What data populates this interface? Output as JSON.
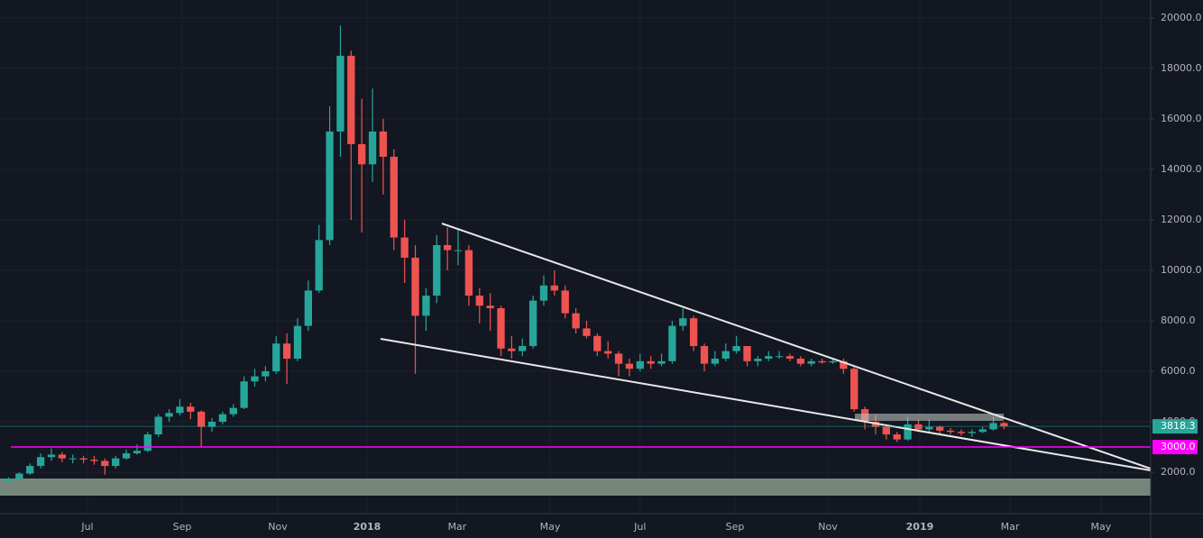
{
  "chart_data": {
    "type": "candlestick",
    "up_color": "#26a69a",
    "down_color": "#ef5350",
    "grid": true,
    "candles": [
      [
        1650,
        1800,
        1600,
        1750
      ],
      [
        1750,
        2000,
        1700,
        1950
      ],
      [
        1950,
        2350,
        1900,
        2250
      ],
      [
        2250,
        2750,
        2150,
        2600
      ],
      [
        2600,
        2950,
        2450,
        2700
      ],
      [
        2700,
        2800,
        2400,
        2550
      ],
      [
        2550,
        2700,
        2350,
        2550
      ],
      [
        2550,
        2650,
        2350,
        2500
      ],
      [
        2500,
        2650,
        2300,
        2450
      ],
      [
        2450,
        2550,
        1900,
        2250
      ],
      [
        2250,
        2650,
        2150,
        2550
      ],
      [
        2550,
        2900,
        2500,
        2750
      ],
      [
        2750,
        3100,
        2700,
        2850
      ],
      [
        2850,
        3600,
        2800,
        3500
      ],
      [
        3500,
        4300,
        3400,
        4200
      ],
      [
        4200,
        4500,
        4000,
        4350
      ],
      [
        4350,
        4900,
        4250,
        4600
      ],
      [
        4600,
        4750,
        4100,
        4400
      ],
      [
        4400,
        4450,
        3000,
        3800
      ],
      [
        3800,
        4150,
        3600,
        4000
      ],
      [
        4000,
        4400,
        3900,
        4300
      ],
      [
        4300,
        4700,
        4200,
        4550
      ],
      [
        4550,
        5800,
        4500,
        5600
      ],
      [
        5600,
        6100,
        5400,
        5800
      ],
      [
        5800,
        6200,
        5600,
        6000
      ],
      [
        6000,
        7400,
        5900,
        7100
      ],
      [
        7100,
        7500,
        5500,
        6500
      ],
      [
        6500,
        8100,
        6400,
        7800
      ],
      [
        7800,
        9600,
        7600,
        9200
      ],
      [
        9200,
        11800,
        9100,
        11200
      ],
      [
        11200,
        16500,
        11000,
        15500
      ],
      [
        15500,
        19700,
        14500,
        18500
      ],
      [
        18500,
        18700,
        12000,
        15000
      ],
      [
        15000,
        16800,
        11500,
        14200
      ],
      [
        14200,
        17200,
        13500,
        15500
      ],
      [
        15500,
        16000,
        13000,
        14500
      ],
      [
        14500,
        14800,
        10800,
        11300
      ],
      [
        11300,
        12000,
        9500,
        10500
      ],
      [
        10500,
        11000,
        5900,
        8200
      ],
      [
        8200,
        9300,
        7600,
        9000
      ],
      [
        9000,
        11400,
        8700,
        11000
      ],
      [
        11000,
        11700,
        10000,
        10800
      ],
      [
        10800,
        11600,
        10200,
        10800
      ],
      [
        10800,
        11000,
        8600,
        9000
      ],
      [
        9000,
        9300,
        7900,
        8600
      ],
      [
        8600,
        9100,
        7600,
        8500
      ],
      [
        8500,
        8600,
        6600,
        6900
      ],
      [
        6900,
        7400,
        6500,
        6800
      ],
      [
        6800,
        7300,
        6600,
        7000
      ],
      [
        7000,
        9000,
        6900,
        8800
      ],
      [
        8800,
        9800,
        8600,
        9400
      ],
      [
        9400,
        10000,
        9000,
        9200
      ],
      [
        9200,
        9400,
        8100,
        8300
      ],
      [
        8300,
        8500,
        7500,
        7700
      ],
      [
        7700,
        8000,
        7300,
        7400
      ],
      [
        7400,
        7500,
        6600,
        6800
      ],
      [
        6800,
        7200,
        6500,
        6700
      ],
      [
        6700,
        6800,
        5800,
        6300
      ],
      [
        6300,
        6500,
        5800,
        6100
      ],
      [
        6100,
        6700,
        6000,
        6400
      ],
      [
        6400,
        6600,
        6100,
        6300
      ],
      [
        6300,
        6700,
        6200,
        6400
      ],
      [
        6400,
        8000,
        6300,
        7800
      ],
      [
        7800,
        8500,
        7600,
        8100
      ],
      [
        8100,
        8200,
        6800,
        7000
      ],
      [
        7000,
        7100,
        6000,
        6300
      ],
      [
        6300,
        6800,
        6200,
        6500
      ],
      [
        6500,
        7100,
        6400,
        6800
      ],
      [
        6800,
        7400,
        6700,
        7000
      ],
      [
        7000,
        7000,
        6200,
        6400
      ],
      [
        6400,
        6600,
        6200,
        6500
      ],
      [
        6500,
        6800,
        6400,
        6600
      ],
      [
        6600,
        6800,
        6500,
        6600
      ],
      [
        6600,
        6700,
        6400,
        6500
      ],
      [
        6500,
        6600,
        6200,
        6300
      ],
      [
        6300,
        6500,
        6200,
        6400
      ],
      [
        6400,
        6500,
        6300,
        6350
      ],
      [
        6350,
        6500,
        6300,
        6400
      ],
      [
        6400,
        6500,
        5900,
        6100
      ],
      [
        6100,
        6200,
        4400,
        4500
      ],
      [
        4500,
        4600,
        3700,
        4000
      ],
      [
        4000,
        4300,
        3500,
        3800
      ],
      [
        3800,
        3900,
        3300,
        3500
      ],
      [
        3500,
        3600,
        3200,
        3300
      ],
      [
        3300,
        4200,
        3250,
        3900
      ],
      [
        3900,
        4100,
        3600,
        3700
      ],
      [
        3700,
        4100,
        3600,
        3800
      ],
      [
        3800,
        3850,
        3500,
        3650
      ],
      [
        3650,
        3750,
        3500,
        3600
      ],
      [
        3600,
        3700,
        3450,
        3550
      ],
      [
        3550,
        3700,
        3400,
        3600
      ],
      [
        3600,
        3800,
        3550,
        3700
      ],
      [
        3700,
        4200,
        3650,
        3950
      ],
      [
        3950,
        4000,
        3700,
        3818.3
      ]
    ],
    "xlim": [
      -0.8,
      106.7
    ],
    "xticks": [
      {
        "value": 7.37,
        "label": "Jul"
      },
      {
        "value": 16.22,
        "label": "Sep"
      },
      {
        "value": 25.15,
        "label": "Nov"
      },
      {
        "value": 33.49,
        "label": "2018"
      },
      {
        "value": 41.91,
        "label": "Mar"
      },
      {
        "value": 50.59,
        "label": "May"
      },
      {
        "value": 59.0,
        "label": "Jul"
      },
      {
        "value": 67.86,
        "label": "Sep"
      },
      {
        "value": 76.54,
        "label": "Nov"
      },
      {
        "value": 85.13,
        "label": "2019"
      },
      {
        "value": 93.56,
        "label": "Mar"
      },
      {
        "value": 102.06,
        "label": "May"
      }
    ],
    "ylim": [
      360,
      20710
    ],
    "yticks": [
      {
        "value": 2000,
        "label": "2000.0"
      },
      {
        "value": 4000,
        "label": "4000.0"
      },
      {
        "value": 6000,
        "label": "6000.0"
      },
      {
        "value": 8000,
        "label": "8000.0"
      },
      {
        "value": 10000,
        "label": "10000.0"
      },
      {
        "value": 12000,
        "label": "12000.0"
      },
      {
        "value": 14000,
        "label": "14000.0"
      },
      {
        "value": 16000,
        "label": "16000.0"
      },
      {
        "value": 18000,
        "label": "18000.0"
      },
      {
        "value": 20000,
        "label": "20000.0"
      }
    ],
    "horizontal_lines": [
      {
        "value": 3000,
        "label": "3000.0",
        "color": "#ff00ff"
      }
    ]
  }
}
